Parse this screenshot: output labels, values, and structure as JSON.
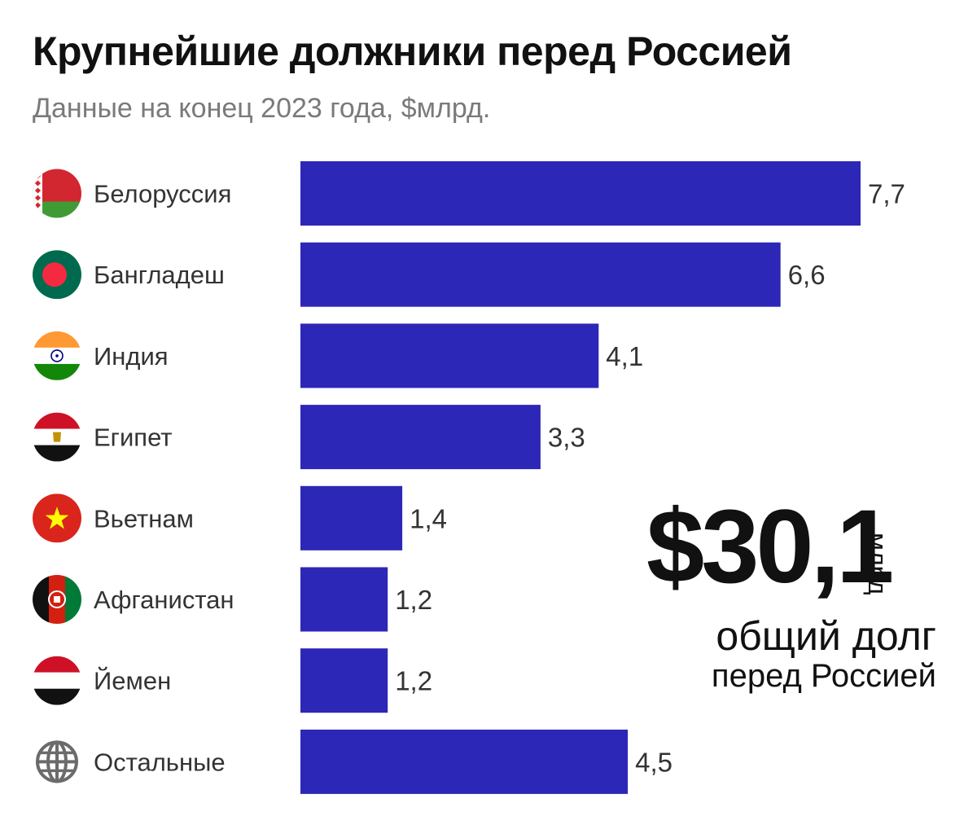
{
  "header": {
    "title": "Крупнейшие должники перед Россией",
    "subtitle": "Данные на конец 2023 года, $млрд."
  },
  "total": {
    "amount": "$30,1",
    "unit": "млрд",
    "caption_line1": "общий долг",
    "caption_line2": "перед Россией"
  },
  "colors": {
    "bar": "#2d27b8",
    "label": "#333333",
    "value": "#333333"
  },
  "chart_data": {
    "type": "bar",
    "orientation": "horizontal",
    "title": "Крупнейшие должники перед Россией",
    "subtitle": "Данные на конец 2023 года, $млрд.",
    "categories": [
      "Белоруссия",
      "Бангладеш",
      "Индия",
      "Египет",
      "Вьетнам",
      "Афганистан",
      "Йемен",
      "Остальные"
    ],
    "values": [
      7.7,
      6.6,
      4.1,
      3.3,
      1.4,
      1.2,
      1.2,
      4.5
    ],
    "value_labels": [
      "7,7",
      "6,6",
      "4,1",
      "3,3",
      "1,4",
      "1,2",
      "1,2",
      "4,5"
    ],
    "icons": [
      "belarus-flag-icon",
      "bangladesh-flag-icon",
      "india-flag-icon",
      "egypt-flag-icon",
      "vietnam-flag-icon",
      "afghanistan-flag-icon",
      "yemen-flag-icon",
      "globe-icon"
    ],
    "xlim": [
      0,
      7.7
    ],
    "grid": false,
    "legend": "none"
  }
}
